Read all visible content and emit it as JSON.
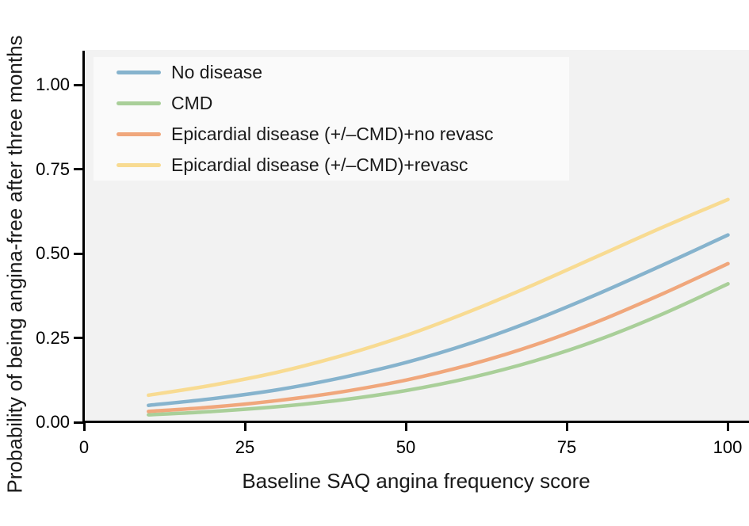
{
  "axes": {
    "y_tick_labels": [
      "1.00",
      "0.75",
      "0.50",
      "0.25",
      "0.00"
    ],
    "x_tick_labels": [
      "0",
      "25",
      "50",
      "75",
      "100"
    ]
  },
  "chart_data": {
    "type": "line",
    "title": "",
    "xlabel": "Baseline SAQ angina frequency score",
    "ylabel": "Probability of being angina-free after three months",
    "xlim": [
      0,
      103
    ],
    "ylim": [
      0,
      1.05
    ],
    "x_ticks": [
      0,
      25,
      50,
      75,
      100
    ],
    "y_ticks": [
      0.0,
      0.25,
      0.5,
      0.75,
      1.0
    ],
    "grid": false,
    "legend_position": "top-left",
    "x": [
      10,
      20,
      30,
      40,
      50,
      60,
      70,
      80,
      90,
      100
    ],
    "series": [
      {
        "name": "No disease",
        "color": "#86b3cd",
        "values": [
          0.05,
          0.07,
          0.096,
          0.132,
          0.177,
          0.234,
          0.303,
          0.382,
          0.467,
          0.555
        ]
      },
      {
        "name": "CMD",
        "color": "#a9cf99",
        "values": [
          0.022,
          0.032,
          0.046,
          0.066,
          0.094,
          0.132,
          0.182,
          0.245,
          0.322,
          0.41
        ]
      },
      {
        "name": "Epicardial disease (+/–CMD)+no revasc",
        "color": "#f0a77c",
        "values": [
          0.032,
          0.045,
          0.064,
          0.09,
          0.125,
          0.171,
          0.229,
          0.3,
          0.382,
          0.47
        ]
      },
      {
        "name": "Epicardial disease (+/–CMD)+revasc",
        "color": "#f8db92",
        "values": [
          0.08,
          0.11,
          0.148,
          0.197,
          0.257,
          0.329,
          0.409,
          0.494,
          0.579,
          0.66
        ]
      }
    ]
  }
}
